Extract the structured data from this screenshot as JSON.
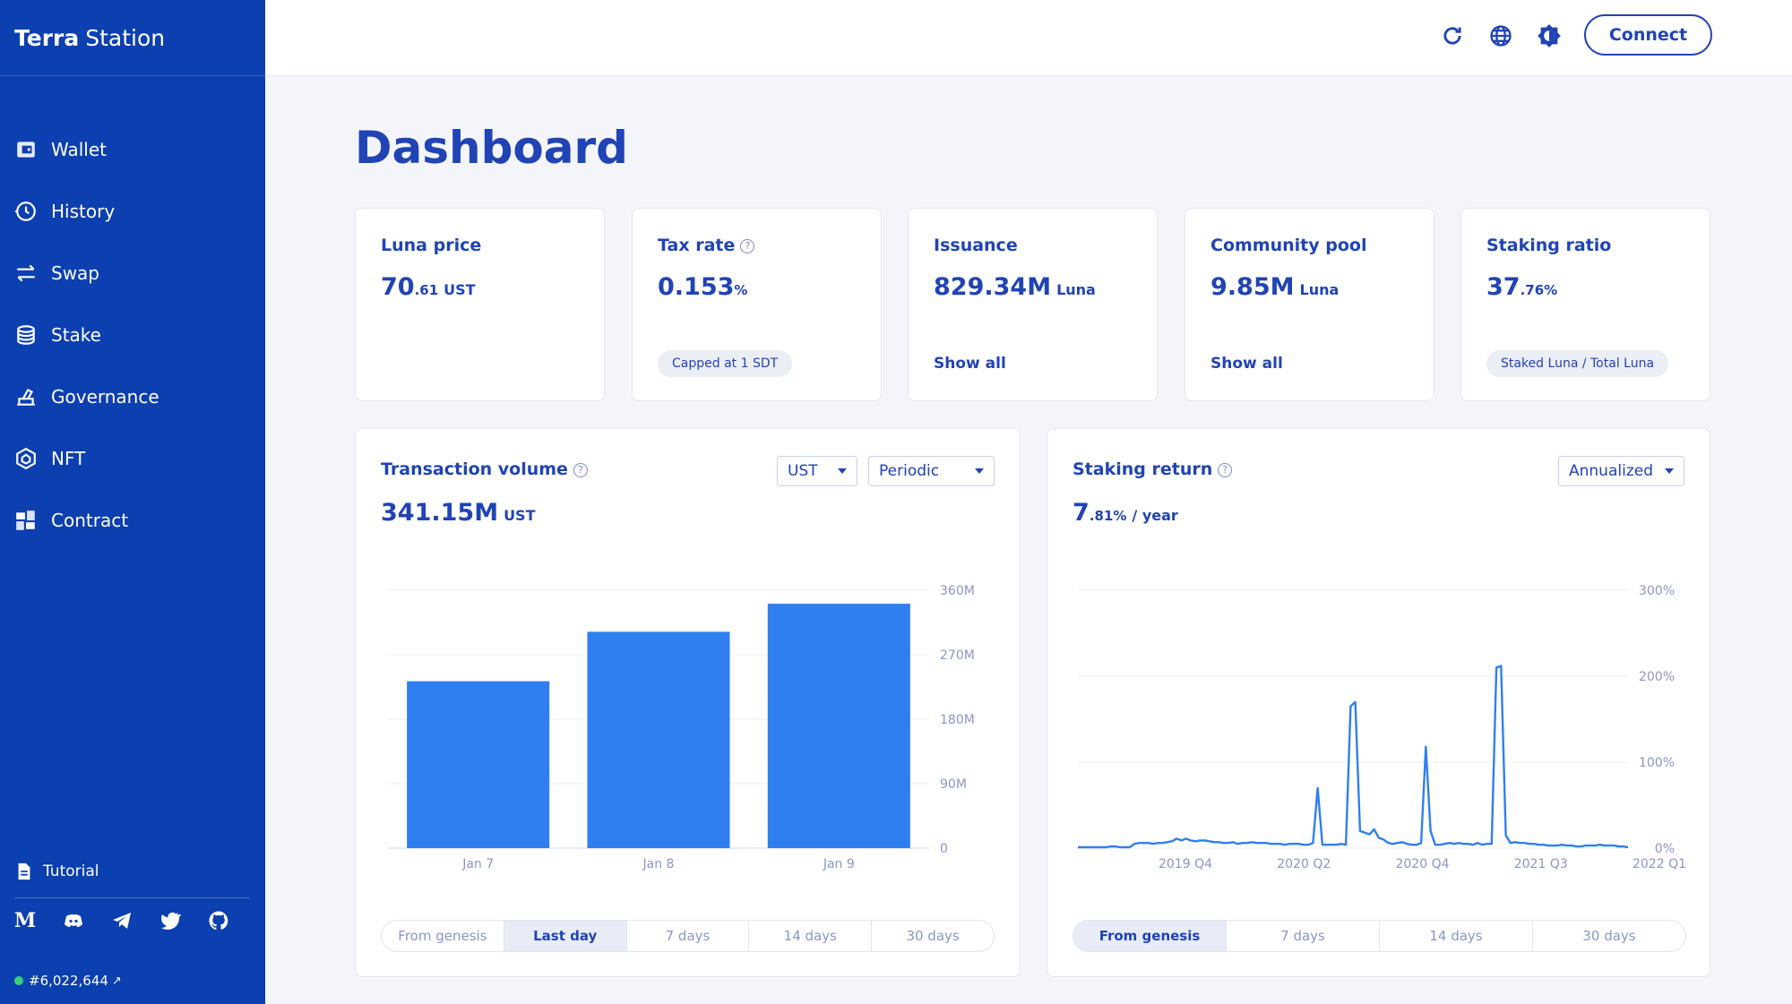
{
  "brand": {
    "bold": "Terra",
    "rest": "Station"
  },
  "sidebar": {
    "items": [
      {
        "label": "Wallet",
        "icon": "wallet-icon"
      },
      {
        "label": "History",
        "icon": "history-icon"
      },
      {
        "label": "Swap",
        "icon": "swap-icon"
      },
      {
        "label": "Stake",
        "icon": "stake-icon"
      },
      {
        "label": "Governance",
        "icon": "governance-icon"
      },
      {
        "label": "NFT",
        "icon": "nft-icon"
      },
      {
        "label": "Contract",
        "icon": "contract-icon"
      }
    ],
    "tutorial": "Tutorial",
    "socials": [
      "medium-icon",
      "discord-icon",
      "telegram-icon",
      "twitter-icon",
      "github-icon"
    ],
    "medium_glyph": "M",
    "block_height": "#6,022,644",
    "block_arrow": "↗"
  },
  "header": {
    "icons": [
      "refresh-icon",
      "globe-icon",
      "theme-icon"
    ],
    "connect_label": "Connect"
  },
  "page_title": "Dashboard",
  "stats": {
    "luna_price": {
      "label": "Luna price",
      "int": "70",
      "dec": ".61",
      "unit": "UST"
    },
    "tax_rate": {
      "label": "Tax rate",
      "int": "0.153",
      "dec": "%",
      "note": "Capped at 1 SDT"
    },
    "issuance": {
      "label": "Issuance",
      "value": "829.34M",
      "unit": "Luna",
      "link": "Show all"
    },
    "community_pool": {
      "label": "Community pool",
      "value": "9.85M",
      "unit": "Luna",
      "link": "Show all"
    },
    "staking_ratio": {
      "label": "Staking ratio",
      "int": "37",
      "dec": ".76%",
      "note": "Staked Luna / Total Luna"
    }
  },
  "help_glyph": "?",
  "transaction_volume": {
    "title": "Transaction volume",
    "value": "341.15M",
    "unit": "UST",
    "select_currency": "UST",
    "select_mode": "Periodic",
    "tabs": [
      "From genesis",
      "Last day",
      "7 days",
      "14 days",
      "30 days"
    ],
    "active_tab": "Last day"
  },
  "staking_return": {
    "title": "Staking return",
    "int": "7",
    "dec": ".81%",
    "suffix": "/ year",
    "select_mode": "Annualized",
    "tabs": [
      "From genesis",
      "7 days",
      "14 days",
      "30 days"
    ],
    "active_tab": "From genesis"
  },
  "colors": {
    "sidebar": "#0c3fb0",
    "primary": "#2043b5",
    "bar": "#2f7ff0",
    "line": "#2f7ff0"
  },
  "chart_data": [
    {
      "type": "bar",
      "categories": [
        "Jan 7",
        "Jan 8",
        "Jan 9"
      ],
      "values": [
        233,
        302,
        341.15
      ],
      "ylim": [
        0,
        360
      ],
      "yticks": [
        0,
        90,
        180,
        270,
        360
      ],
      "ytick_labels": [
        "0",
        "90M",
        "180M",
        "270M",
        "360M"
      ],
      "grid": true
    },
    {
      "type": "line",
      "xtick_labels": [
        "2019 Q4",
        "2020 Q2",
        "2020 Q4",
        "2021 Q3",
        "2022 Q1"
      ],
      "ylim": [
        0,
        300
      ],
      "yticks": [
        0,
        100,
        200,
        300
      ],
      "ytick_labels": [
        "0%",
        "100%",
        "200%",
        "300%"
      ],
      "y_percent": [
        1,
        1,
        1,
        1,
        1,
        1,
        1,
        2,
        2,
        1,
        1,
        1,
        5,
        6,
        6,
        6,
        5,
        6,
        6,
        7,
        8,
        11,
        9,
        11,
        9,
        8,
        9,
        9,
        8,
        7,
        7,
        6,
        6,
        7,
        5,
        6,
        6,
        7,
        6,
        6,
        6,
        5,
        5,
        5,
        4,
        5,
        5,
        5,
        4,
        4,
        6,
        70,
        4,
        4,
        4,
        4,
        5,
        4,
        165,
        170,
        20,
        18,
        16,
        22,
        12,
        10,
        6,
        5,
        6,
        7,
        5,
        4,
        4,
        6,
        118,
        20,
        4,
        4,
        5,
        6,
        5,
        6,
        5,
        5,
        4,
        6,
        4,
        5,
        5,
        210,
        212,
        15,
        6,
        7,
        6,
        6,
        5,
        5,
        4,
        4,
        3,
        3,
        3,
        4,
        3,
        3,
        2,
        2,
        3,
        3,
        3,
        4,
        3,
        3,
        3,
        2,
        2,
        1
      ],
      "grid": true
    }
  ]
}
